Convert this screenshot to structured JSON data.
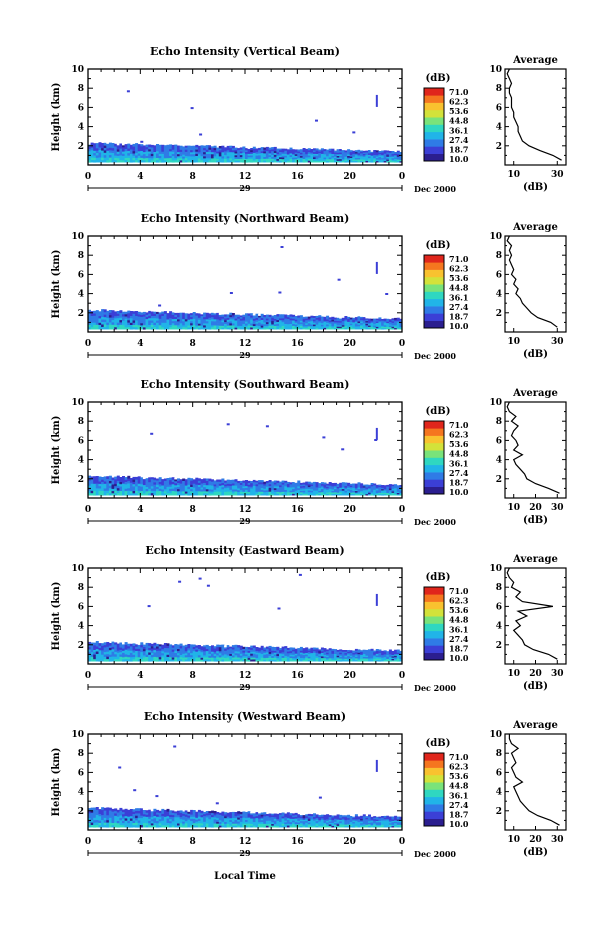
{
  "colorbar": {
    "unit": "(dB)",
    "levels": [
      "71.0",
      "62.3",
      "53.6",
      "44.8",
      "36.1",
      "27.4",
      "18.7",
      "10.0"
    ],
    "colors": [
      "#2b1e8f",
      "#3b3fd6",
      "#2f7be6",
      "#21b4e8",
      "#2fd7c1",
      "#79e37a",
      "#d3e23a",
      "#f9c22f",
      "#f5761f",
      "#e0261c"
    ]
  },
  "date_label": "Dec 2000",
  "day_label": "29",
  "x_label": "Local Time",
  "chart_data": [
    {
      "type": "heatmap",
      "title": "Echo Intensity (Vertical Beam)",
      "ylabel": "Height (km)",
      "xlim": [
        0,
        24
      ],
      "ylim": [
        0,
        10
      ],
      "x_ticks": [
        "0",
        "4",
        "8",
        "12",
        "16",
        "20",
        "0"
      ],
      "y_ticks": [
        "2",
        "4",
        "6",
        "8",
        "10"
      ],
      "profile": {
        "title": "Average",
        "xlabel": "(dB)",
        "xlim": [
          6,
          34
        ],
        "x_ticks": [
          "10",
          "30"
        ],
        "heights": [
          0.5,
          1.0,
          1.5,
          2.0,
          2.5,
          3.0,
          3.5,
          4.0,
          4.5,
          5.0,
          5.5,
          6.0,
          6.5,
          7.0,
          7.5,
          8.0,
          8.5,
          9.0,
          9.5,
          10.0
        ],
        "values": [
          32,
          28,
          22,
          17,
          14,
          13,
          12,
          12,
          11,
          10,
          10,
          9,
          9,
          9,
          8,
          8,
          9,
          8,
          7,
          8
        ]
      }
    },
    {
      "type": "heatmap",
      "title": "Echo Intensity (Northward Beam)",
      "ylabel": "Height (km)",
      "xlim": [
        0,
        24
      ],
      "ylim": [
        0,
        10
      ],
      "x_ticks": [
        "0",
        "4",
        "8",
        "12",
        "16",
        "20",
        "0"
      ],
      "y_ticks": [
        "2",
        "4",
        "6",
        "8",
        "10"
      ],
      "profile": {
        "title": "Average",
        "xlabel": "(dB)",
        "xlim": [
          6,
          34
        ],
        "x_ticks": [
          "10",
          "30"
        ],
        "heights": [
          0.5,
          1.0,
          1.5,
          2.0,
          2.5,
          3.0,
          3.5,
          4.0,
          4.5,
          5.0,
          5.5,
          6.0,
          6.5,
          7.0,
          7.5,
          8.0,
          8.5,
          9.0,
          9.5,
          10.0
        ],
        "values": [
          30,
          27,
          21,
          18,
          16,
          14,
          13,
          11,
          12,
          10,
          11,
          9,
          10,
          9,
          8,
          9,
          8,
          9,
          7,
          8
        ]
      }
    },
    {
      "type": "heatmap",
      "title": "Echo Intensity (Southward Beam)",
      "ylabel": "Height (km)",
      "xlim": [
        0,
        24
      ],
      "ylim": [
        0,
        10
      ],
      "x_ticks": [
        "0",
        "4",
        "8",
        "12",
        "16",
        "20",
        "0"
      ],
      "y_ticks": [
        "2",
        "4",
        "6",
        "8",
        "10"
      ],
      "profile": {
        "title": "Average",
        "xlabel": "(dB)",
        "xlim": [
          6,
          34
        ],
        "x_ticks": [
          "10",
          "20",
          "30"
        ],
        "heights": [
          0.5,
          1.0,
          1.5,
          2.0,
          2.5,
          3.0,
          3.5,
          4.0,
          4.5,
          5.0,
          5.5,
          6.0,
          6.5,
          7.0,
          7.5,
          8.0,
          8.5,
          9.0,
          9.5,
          10.0
        ],
        "values": [
          31,
          26,
          20,
          16,
          15,
          13,
          11,
          10,
          14,
          10,
          12,
          11,
          9,
          10,
          12,
          9,
          11,
          8,
          7,
          8
        ]
      }
    },
    {
      "type": "heatmap",
      "title": "Echo Intensity (Eastward Beam)",
      "ylabel": "Height (km)",
      "xlim": [
        0,
        24
      ],
      "ylim": [
        0,
        10
      ],
      "x_ticks": [
        "0",
        "4",
        "8",
        "12",
        "16",
        "20",
        "0"
      ],
      "y_ticks": [
        "2",
        "4",
        "6",
        "8",
        "10"
      ],
      "profile": {
        "title": "Average",
        "xlabel": "(dB)",
        "xlim": [
          6,
          34
        ],
        "x_ticks": [
          "10",
          "20",
          "30"
        ],
        "heights": [
          0.5,
          1.0,
          1.5,
          2.0,
          2.5,
          3.0,
          3.5,
          4.0,
          4.5,
          5.0,
          5.5,
          6.0,
          6.5,
          7.0,
          7.5,
          8.0,
          8.5,
          9.0,
          9.5,
          10.0
        ],
        "values": [
          30,
          26,
          19,
          15,
          14,
          12,
          10,
          13,
          11,
          16,
          12,
          28,
          14,
          11,
          13,
          9,
          10,
          8,
          7,
          8
        ]
      }
    },
    {
      "type": "heatmap",
      "title": "Echo Intensity (Westward Beam)",
      "ylabel": "Height (km)",
      "xlim": [
        0,
        24
      ],
      "ylim": [
        0,
        10
      ],
      "x_ticks": [
        "0",
        "4",
        "8",
        "12",
        "16",
        "20",
        "0"
      ],
      "y_ticks": [
        "2",
        "4",
        "6",
        "8",
        "10"
      ],
      "profile": {
        "title": "Average",
        "xlabel": "(dB)",
        "xlim": [
          6,
          34
        ],
        "x_ticks": [
          "10",
          "20",
          "30"
        ],
        "heights": [
          0.5,
          1.0,
          1.5,
          2.0,
          2.5,
          3.0,
          3.5,
          4.0,
          4.5,
          5.0,
          5.5,
          6.0,
          6.5,
          7.0,
          7.5,
          8.0,
          8.5,
          9.0,
          9.5,
          10.0
        ],
        "values": [
          31,
          27,
          21,
          17,
          15,
          13,
          12,
          11,
          10,
          14,
          11,
          10,
          9,
          11,
          10,
          9,
          12,
          9,
          8,
          8
        ]
      }
    }
  ]
}
